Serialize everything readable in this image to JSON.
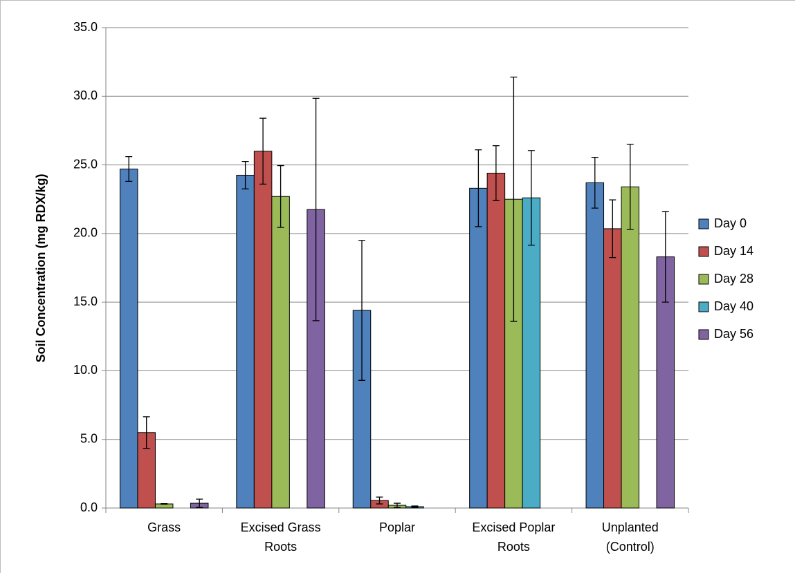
{
  "chart_data": {
    "type": "bar",
    "y_label": "Soil Concentration (mg RDX/kg)",
    "categories": [
      "Grass",
      "Excised Grass Roots",
      "Poplar",
      "Excised Poplar Roots",
      "Unplanted (Control)"
    ],
    "series": [
      {
        "name": "Day 0",
        "color": "#4f81bd",
        "values": [
          24.7,
          24.25,
          14.4,
          23.3,
          23.7
        ],
        "errors": [
          0.9,
          1.0,
          5.1,
          2.8,
          1.85
        ]
      },
      {
        "name": "Day 14",
        "color": "#c0504d",
        "values": [
          5.5,
          26.0,
          0.55,
          24.4,
          20.35
        ],
        "errors": [
          1.15,
          2.4,
          0.25,
          2.0,
          2.1
        ]
      },
      {
        "name": "Day 28",
        "color": "#9bbb59",
        "values": [
          0.3,
          22.7,
          0.2,
          22.5,
          23.4
        ],
        "errors": [
          0.02,
          2.25,
          0.15,
          8.9,
          3.1
        ]
      },
      {
        "name": "Day 40",
        "color": "#4bacc6",
        "values": [
          null,
          null,
          0.1,
          22.6,
          null
        ],
        "errors": [
          null,
          null,
          0.05,
          3.45,
          null
        ]
      },
      {
        "name": "Day 56",
        "color": "#8064a2",
        "values": [
          0.35,
          21.75,
          null,
          null,
          18.3
        ],
        "errors": [
          0.3,
          8.1,
          null,
          null,
          3.3
        ]
      }
    ],
    "ylim": [
      0,
      35
    ],
    "yticks": [
      {
        "value": 0,
        "label": "0.0"
      },
      {
        "value": 5,
        "label": "5.0"
      },
      {
        "value": 10,
        "label": "10.0"
      },
      {
        "value": 15,
        "label": "15.0"
      },
      {
        "value": 20,
        "label": "20.0"
      },
      {
        "value": 25,
        "label": "25.0"
      },
      {
        "value": 30,
        "label": "30.0"
      },
      {
        "value": 35,
        "label": "35.0"
      }
    ],
    "grid": true,
    "legend": "right"
  }
}
